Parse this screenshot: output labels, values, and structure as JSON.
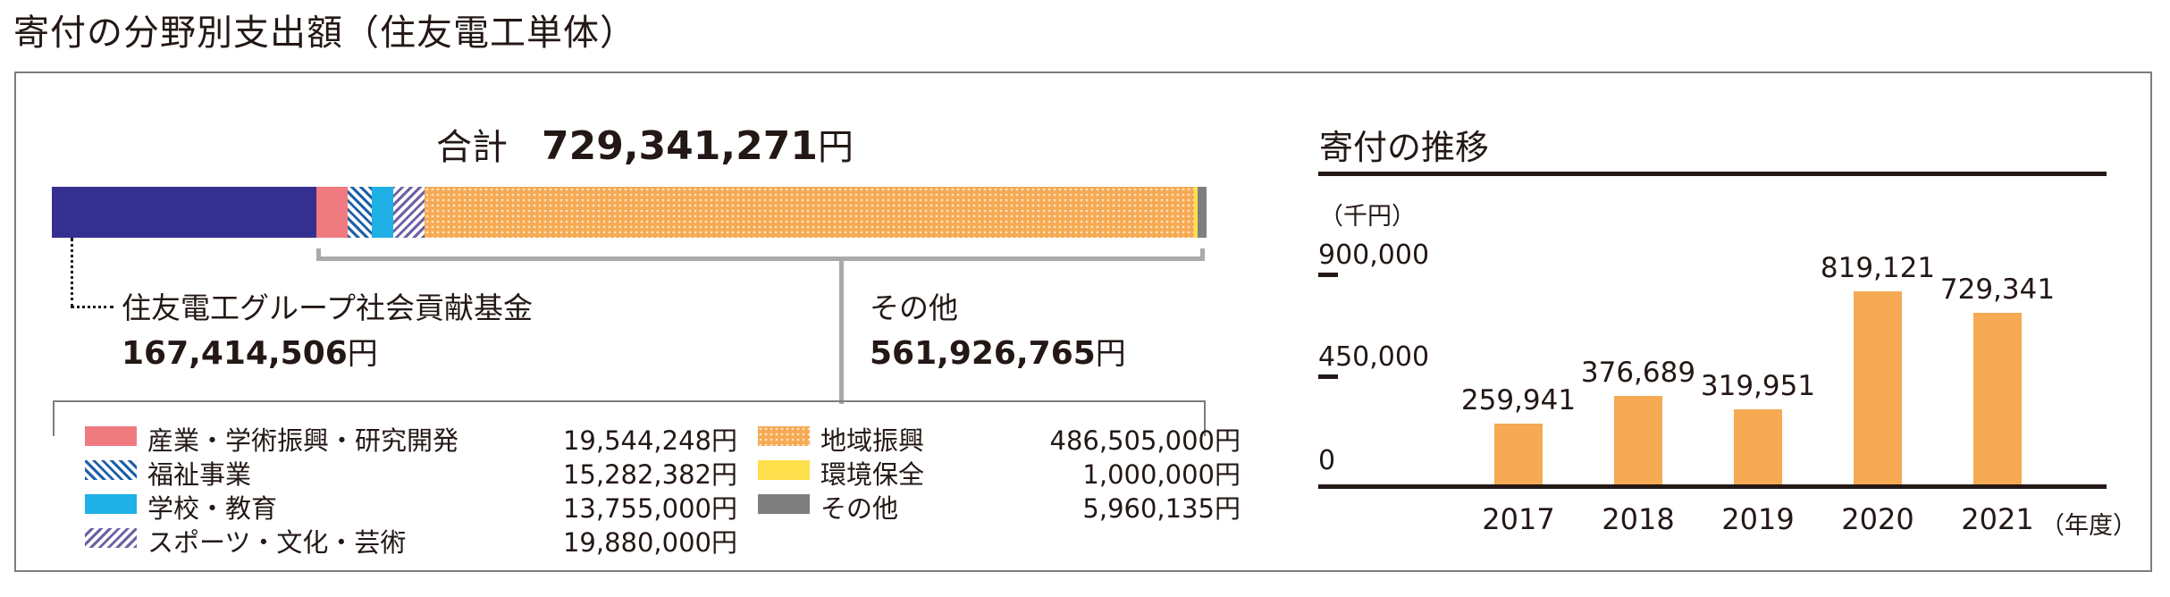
{
  "page_title": "寄付の分野別支出額（住友電工単体）",
  "breakdown": {
    "total_label": "合計",
    "total_value": "729,341,271",
    "currency": "円",
    "foundation_label": "住友電工グループ社会貢献基金",
    "foundation_amount": "167,414,506",
    "other_label": "その他",
    "other_amount": "561,926,765",
    "segments": [
      {
        "name": "住友電工グループ社会貢献基金",
        "value": 167414506,
        "color": "#35308f",
        "pattern": "solid"
      },
      {
        "name": "産業・学術振興・研究開発",
        "value": 19544248,
        "color": "#ef7b80",
        "pattern": "solid"
      },
      {
        "name": "福祉事業",
        "value": 15282382,
        "color": "#1d60a8",
        "pattern": "stripe"
      },
      {
        "name": "学校・教育",
        "value": 13755000,
        "color": "#1fb0e6",
        "pattern": "solid"
      },
      {
        "name": "スポーツ・文化・芸術",
        "value": 19880000,
        "color": "#6f60a5",
        "pattern": "hatch"
      },
      {
        "name": "地域振興",
        "value": 486505000,
        "color": "#f5aa53",
        "pattern": "dots"
      },
      {
        "name": "環境保全",
        "value": 1000000,
        "color": "#fedf4c",
        "pattern": "solid"
      },
      {
        "name": "その他",
        "value": 5960135,
        "color": "#7f7f7f",
        "pattern": "solid"
      }
    ],
    "legend": [
      {
        "label": "産業・学術振興・研究開発",
        "amount": "19,544,248円"
      },
      {
        "label": "福祉事業",
        "amount": "15,282,382円"
      },
      {
        "label": "学校・教育",
        "amount": "13,755,000円"
      },
      {
        "label": "スポーツ・文化・芸術",
        "amount": "19,880,000円"
      },
      {
        "label": "地域振興",
        "amount": "486,505,000円"
      },
      {
        "label": "環境保全",
        "amount": "1,000,000円"
      },
      {
        "label": "その他",
        "amount": "5,960,135円"
      }
    ]
  },
  "chart_data": {
    "type": "bar",
    "title": "寄付の推移",
    "unit_label": "（千円）",
    "x_unit": "（年度）",
    "categories": [
      "2017",
      "2018",
      "2019",
      "2020",
      "2021"
    ],
    "values": [
      259941,
      376689,
      319951,
      819121,
      729341
    ],
    "value_labels": [
      "259,941",
      "376,689",
      "319,951",
      "819,121",
      "729,341"
    ],
    "ylim": [
      0,
      900000
    ],
    "yticks": [
      0,
      450000,
      900000
    ],
    "ytick_labels": [
      "0",
      "450,000",
      "900,000"
    ],
    "bar_color": "#f5aa53",
    "grid": false
  }
}
